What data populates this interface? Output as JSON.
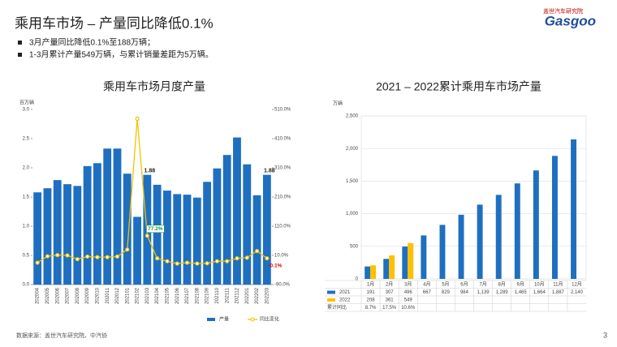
{
  "header": {
    "title": "乘用车市场 – 产量同比降低0.1%"
  },
  "bullets": [
    "3月产量同比降低0.1%至188万辆；",
    "1-3月累计产量549万辆，与累计销量差距为5万辆。"
  ],
  "logo": {
    "name": "Gasgoo",
    "subtitle": "盖世汽车研究院"
  },
  "source": "数据来源：盖世汽车研究院、中汽协",
  "page_number": "3",
  "chart_data": [
    {
      "type": "bar_line",
      "title": "乘用车市场月度产量",
      "y_label": "百万辆",
      "categories": [
        "202004",
        "202005",
        "202006",
        "202007",
        "202008",
        "202009",
        "202010",
        "202011",
        "202012",
        "202101",
        "202102",
        "202103",
        "202104",
        "202105",
        "202106",
        "202107",
        "202108",
        "202109",
        "202110",
        "202111",
        "202112",
        "202201",
        "202202",
        "202203"
      ],
      "series": [
        {
          "name": "产量",
          "color": "#1f6fc0",
          "values": [
            1.58,
            1.65,
            1.79,
            1.72,
            1.69,
            2.03,
            2.08,
            2.33,
            2.33,
            1.9,
            1.16,
            1.88,
            1.71,
            1.61,
            1.55,
            1.54,
            1.49,
            1.76,
            1.99,
            2.22,
            2.52,
            2.06,
            1.53,
            1.88
          ],
          "value_labels": [
            null,
            null,
            null,
            null,
            null,
            null,
            null,
            null,
            null,
            null,
            null,
            "1.88",
            null,
            null,
            null,
            null,
            null,
            null,
            null,
            null,
            null,
            null,
            null,
            "1.88"
          ]
        },
        {
          "name": "同比变化",
          "color": "#f2c300",
          "axis": "y2",
          "values": [
            -15,
            7,
            11,
            10,
            -3,
            6,
            4,
            4,
            6,
            30,
            478,
            77.2,
            0,
            -10,
            -18,
            -15,
            -18,
            -17,
            -10,
            -10,
            0,
            2,
            25,
            -0.1
          ],
          "value_labels": [
            null,
            null,
            null,
            null,
            null,
            null,
            null,
            null,
            null,
            null,
            null,
            "77.2%",
            null,
            null,
            null,
            null,
            null,
            null,
            null,
            null,
            null,
            null,
            null,
            "-0.1%"
          ]
        }
      ],
      "ylim": [
        0,
        3
      ],
      "yticks": [
        {
          "value": 0,
          "label": "0.0"
        },
        0.5,
        {
          "value": 1,
          "label": "1.0"
        },
        1.5,
        {
          "value": 2,
          "label": "2.0"
        },
        2.5,
        {
          "value": 3,
          "label": "3.0"
        }
      ],
      "y2lim": [
        -90,
        510
      ],
      "y2ticks": [
        {
          "value": -90,
          "label": "-90.0%"
        },
        {
          "value": 10,
          "label": "10.0%"
        },
        {
          "value": 110,
          "label": "110.0%"
        },
        {
          "value": 210,
          "label": "210.0%"
        },
        {
          "value": 310,
          "label": "310.0%"
        },
        {
          "value": 410,
          "label": "410.0%"
        },
        {
          "value": 510,
          "label": "510.0%"
        }
      ],
      "grid": false,
      "legend": "bottom"
    },
    {
      "type": "bar",
      "title": "2021 – 2022累计乘用车市场产量",
      "y_label": "万辆",
      "categories": [
        "1月",
        "2月",
        "3月",
        "4月",
        "5月",
        "6月",
        "7月",
        "8月",
        "9月",
        "10月",
        "11月",
        "12月"
      ],
      "series": [
        {
          "name": "2021",
          "color": "#1f6fc0",
          "values": [
            191,
            307,
            496,
            667,
            829,
            984,
            1139,
            1289,
            1465,
            1664,
            1887,
            2140
          ],
          "value_labels": [
            "191",
            "307",
            "496",
            "667",
            "829",
            "984",
            "1,139",
            "1,289",
            "1,465",
            "1,664",
            "1,887",
            "2,140"
          ]
        },
        {
          "name": "2022",
          "color": "#ffc000",
          "values": [
            208,
            361,
            549,
            null,
            null,
            null,
            null,
            null,
            null,
            null,
            null,
            null
          ],
          "value_labels": [
            "208",
            "361",
            "549",
            null,
            null,
            null,
            null,
            null,
            null,
            null,
            null,
            null
          ]
        }
      ],
      "growth": {
        "name": "累计同比",
        "values": [
          8.7,
          17.5,
          10.6
        ],
        "value_labels": [
          "8.7%",
          "17.5%",
          "10.6%"
        ]
      },
      "ylim": [
        0,
        2500
      ],
      "yticks": [
        0,
        500,
        {
          "value": 1000,
          "label": "1,000"
        },
        {
          "value": 1500,
          "label": "1,500"
        },
        {
          "value": 2000,
          "label": "2,000"
        },
        {
          "value": 2500,
          "label": "2,500"
        }
      ],
      "grid": true,
      "legend": "table"
    }
  ]
}
